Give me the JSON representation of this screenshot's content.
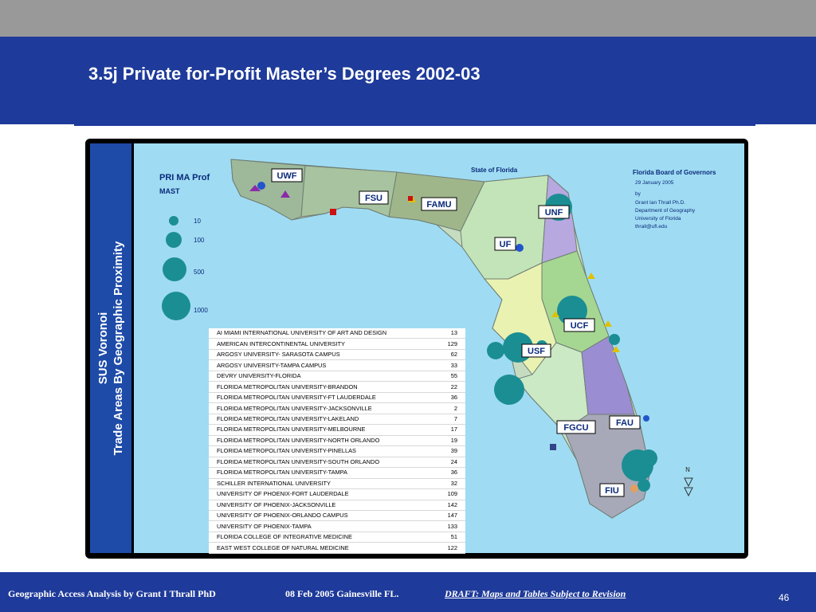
{
  "slide": {
    "title": "3.5j Private for-Profit Master’s Degrees 2002-03",
    "page_number": "46"
  },
  "side_band": {
    "line1": "SUS Voronoi",
    "line2": "Trade Areas By Geographic Proximity"
  },
  "legend": {
    "title": "PRI MA Prof",
    "subtitle": "MAST",
    "items": [
      {
        "label": "10",
        "value": 10
      },
      {
        "label": "100",
        "value": 100
      },
      {
        "label": "500",
        "value": 500
      },
      {
        "label": "1000",
        "value": 1000
      }
    ]
  },
  "map": {
    "state_label": "State of Florida",
    "university_labels": [
      "UWF",
      "FSU",
      "FAMU",
      "UNF",
      "UF",
      "UCF",
      "USF",
      "FGCU",
      "FAU",
      "FIU"
    ],
    "credits": [
      "Florida Board of Governors",
      "29 January 2005",
      "by",
      "Grant Ian Thrall Ph.D.",
      "Department of Geography",
      "University of Florida",
      "thrall@ufl.edu"
    ],
    "north_label": "N",
    "colors": {
      "water": "#9fdcf3",
      "bubble": "#1b8e94",
      "border": "#7a8a80"
    }
  },
  "table": [
    {
      "name": "AI MIAMI INTERNATIONAL UNIVERSITY OF ART AND DESIGN",
      "value": "13"
    },
    {
      "name": "AMERICAN INTERCONTINENTAL UNIVERSITY",
      "value": "129"
    },
    {
      "name": "ARGOSY UNIVERSITY- SARASOTA CAMPUS",
      "value": "62"
    },
    {
      "name": "ARGOSY UNIVERSITY-TAMPA CAMPUS",
      "value": "33"
    },
    {
      "name": "DEVRY UNIVERSITY-FLORIDA",
      "value": "55"
    },
    {
      "name": "FLORIDA METROPOLITAN UNIVERSITY-BRANDON",
      "value": "22"
    },
    {
      "name": "FLORIDA METROPOLITAN UNIVERSITY-FT LAUDERDALE",
      "value": "36"
    },
    {
      "name": "FLORIDA METROPOLITAN UNIVERSITY-JACKSONVILLE",
      "value": "2"
    },
    {
      "name": "FLORIDA METROPOLITAN UNIVERSITY-LAKELAND",
      "value": "7"
    },
    {
      "name": "FLORIDA METROPOLITAN UNIVERSITY-MELBOURNE",
      "value": "17"
    },
    {
      "name": "FLORIDA METROPOLITAN UNIVERSITY-NORTH ORLANDO",
      "value": "19"
    },
    {
      "name": "FLORIDA METROPOLITAN UNIVERSITY-PINELLAS",
      "value": "39"
    },
    {
      "name": "FLORIDA METROPOLITAN UNIVERSITY-SOUTH ORLANDO",
      "value": "24"
    },
    {
      "name": "FLORIDA METROPOLITAN UNIVERSITY-TAMPA",
      "value": "36"
    },
    {
      "name": "SCHILLER INTERNATIONAL UNIVERSITY",
      "value": "32"
    },
    {
      "name": "UNIVERSITY OF PHOENIX-FORT LAUDERDALE",
      "value": "109"
    },
    {
      "name": "UNIVERSITY OF PHOENIX-JACKSONVILLE",
      "value": "142"
    },
    {
      "name": "UNIVERSITY OF PHOENIX-ORLANDO CAMPUS",
      "value": "147"
    },
    {
      "name": "UNIVERSITY OF PHOENIX-TAMPA",
      "value": "133"
    },
    {
      "name": "FLORIDA COLLEGE OF INTEGRATIVE MEDICINE",
      "value": "51"
    },
    {
      "name": "EAST WEST COLLEGE OF NATURAL MEDICINE",
      "value": "122"
    }
  ],
  "footer": {
    "left": "Geographic Access Analysis by Grant I Thrall PhD",
    "middle": "08 Feb 2005  Gainesville FL.",
    "draft": "DRAFT:  Maps and Tables Subject to Revision"
  }
}
